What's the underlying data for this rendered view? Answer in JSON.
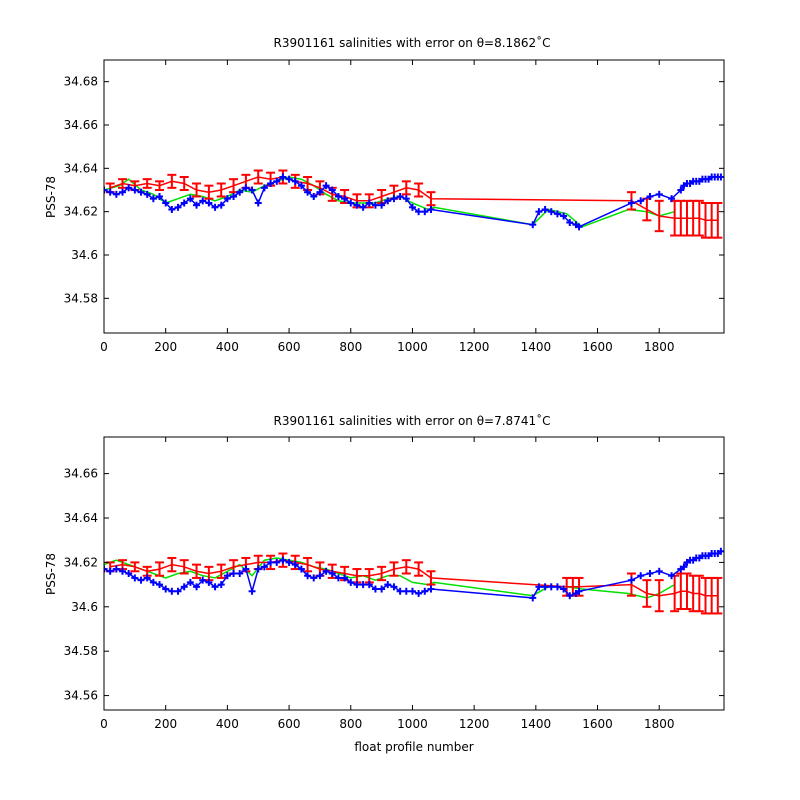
{
  "colors": {
    "fitted": "#00e000",
    "mapped": "#ff0000",
    "observed": "#0000ff",
    "axes": "#000000",
    "background": "#ffffff"
  },
  "chart_data": [
    {
      "type": "scatter",
      "title": "R3901161 salinities with error on θ=8.1862˚C",
      "xlabel": "",
      "ylabel": "PSS-78",
      "xlim": [
        0,
        2010
      ],
      "ylim": [
        34.564,
        34.69
      ],
      "xticks": [
        "0",
        "200",
        "400",
        "600",
        "800",
        "1000",
        "1200",
        "1400",
        "1600",
        "1800"
      ],
      "yticks": [
        "34.58",
        "34.6",
        "34.62",
        "34.64",
        "34.66",
        "34.68"
      ],
      "xtick_values": [
        0,
        200,
        400,
        600,
        800,
        1000,
        1200,
        1400,
        1600,
        1800
      ],
      "ytick_values": [
        34.58,
        34.6,
        34.62,
        34.64,
        34.66,
        34.68
      ],
      "grid": false,
      "series": [
        {
          "role": "mapped-with-error",
          "x": [
            20,
            60,
            100,
            140,
            180,
            220,
            260,
            300,
            340,
            380,
            420,
            460,
            500,
            540,
            580,
            620,
            660,
            700,
            740,
            780,
            820,
            860,
            900,
            940,
            980,
            1020,
            1060,
            1710,
            1760,
            1800,
            1850,
            1870,
            1890,
            1910,
            1930,
            1950,
            1970,
            1990
          ],
          "y": [
            34.631,
            34.633,
            34.632,
            34.633,
            34.632,
            34.634,
            34.633,
            34.63,
            34.629,
            34.63,
            34.632,
            34.634,
            34.636,
            34.635,
            34.636,
            34.634,
            34.633,
            34.631,
            34.628,
            34.627,
            34.625,
            34.625,
            34.627,
            34.629,
            34.631,
            34.63,
            34.626,
            34.625,
            34.621,
            34.618,
            34.617,
            34.617,
            34.617,
            34.617,
            34.617,
            34.616,
            34.616,
            34.616
          ],
          "err": [
            0.002,
            0.002,
            0.002,
            0.002,
            0.002,
            0.003,
            0.003,
            0.003,
            0.003,
            0.003,
            0.003,
            0.003,
            0.003,
            0.003,
            0.003,
            0.003,
            0.003,
            0.003,
            0.003,
            0.003,
            0.003,
            0.003,
            0.003,
            0.003,
            0.003,
            0.003,
            0.003,
            0.004,
            0.005,
            0.007,
            0.008,
            0.008,
            0.008,
            0.008,
            0.008,
            0.008,
            0.008,
            0.008
          ]
        },
        {
          "role": "fitted",
          "x": [
            0,
            50,
            80,
            120,
            160,
            200,
            240,
            280,
            320,
            360,
            400,
            440,
            480,
            520,
            560,
            600,
            640,
            680,
            720,
            760,
            800,
            840,
            880,
            920,
            960,
            1000,
            1050,
            1070,
            1390,
            1440,
            1500,
            1550,
            1700,
            1760,
            1800,
            1850
          ],
          "y": [
            34.63,
            34.632,
            34.635,
            34.63,
            34.628,
            34.624,
            34.626,
            34.628,
            34.627,
            34.625,
            34.627,
            34.63,
            34.629,
            34.632,
            34.634,
            34.636,
            34.635,
            34.632,
            34.628,
            34.625,
            34.624,
            34.624,
            34.624,
            34.626,
            34.627,
            34.624,
            34.621,
            34.622,
            34.614,
            34.621,
            34.619,
            34.613,
            34.621,
            34.62,
            34.618,
            34.62
          ]
        },
        {
          "role": "observed",
          "x": [
            0,
            20,
            40,
            60,
            80,
            100,
            120,
            140,
            160,
            180,
            200,
            220,
            240,
            260,
            280,
            300,
            320,
            340,
            360,
            380,
            400,
            420,
            440,
            460,
            480,
            500,
            520,
            540,
            560,
            580,
            600,
            620,
            640,
            660,
            680,
            700,
            720,
            740,
            760,
            780,
            800,
            820,
            840,
            860,
            880,
            900,
            920,
            940,
            960,
            980,
            1000,
            1020,
            1040,
            1060,
            1390,
            1410,
            1430,
            1450,
            1470,
            1490,
            1510,
            1530,
            1540,
            1710,
            1740,
            1770,
            1800,
            1840,
            1870,
            1880,
            1890,
            1900,
            1910,
            1920,
            1930,
            1940,
            1950,
            1960,
            1970,
            1980,
            1990,
            2000
          ],
          "y": [
            34.63,
            34.629,
            34.628,
            34.629,
            34.631,
            34.63,
            34.629,
            34.628,
            34.626,
            34.627,
            34.624,
            34.621,
            34.622,
            34.624,
            34.626,
            34.623,
            34.625,
            34.624,
            34.622,
            34.623,
            34.626,
            34.627,
            34.629,
            34.631,
            34.63,
            34.624,
            34.631,
            34.633,
            34.634,
            34.636,
            34.635,
            34.634,
            34.632,
            34.629,
            34.627,
            34.629,
            34.632,
            34.63,
            34.627,
            34.626,
            34.624,
            34.623,
            34.622,
            34.624,
            34.623,
            34.623,
            34.625,
            34.626,
            34.627,
            34.626,
            34.622,
            34.62,
            34.62,
            34.621,
            34.614,
            34.62,
            34.621,
            34.62,
            34.619,
            34.618,
            34.615,
            34.614,
            34.613,
            34.624,
            34.625,
            34.627,
            34.628,
            34.626,
            34.63,
            34.632,
            34.633,
            34.633,
            34.634,
            34.634,
            34.634,
            34.635,
            34.635,
            34.635,
            34.636,
            34.636,
            34.636,
            34.636
          ]
        }
      ]
    },
    {
      "type": "scatter",
      "title": "R3901161 salinities with error on θ=7.8741˚C",
      "xlabel": "float profile number",
      "ylabel": "PSS-78",
      "xlim": [
        0,
        2010
      ],
      "ylim": [
        34.5535,
        34.6765
      ],
      "xticks": [
        "0",
        "200",
        "400",
        "600",
        "800",
        "1000",
        "1200",
        "1400",
        "1600",
        "1800"
      ],
      "yticks": [
        "34.56",
        "34.58",
        "34.6",
        "34.62",
        "34.64",
        "34.66"
      ],
      "xtick_values": [
        0,
        200,
        400,
        600,
        800,
        1000,
        1200,
        1400,
        1600,
        1800
      ],
      "ytick_values": [
        34.56,
        34.58,
        34.6,
        34.62,
        34.64,
        34.66
      ],
      "grid": false,
      "series": [
        {
          "role": "mapped-with-error",
          "x": [
            20,
            60,
            100,
            140,
            180,
            220,
            260,
            300,
            340,
            380,
            420,
            460,
            500,
            540,
            580,
            620,
            660,
            700,
            740,
            780,
            820,
            860,
            900,
            940,
            980,
            1020,
            1060,
            1500,
            1520,
            1540,
            1710,
            1760,
            1800,
            1850,
            1870,
            1890,
            1910,
            1930,
            1950,
            1970,
            1990
          ],
          "y": [
            34.618,
            34.619,
            34.618,
            34.616,
            34.617,
            34.619,
            34.618,
            34.616,
            34.615,
            34.616,
            34.618,
            34.619,
            34.62,
            34.62,
            34.621,
            34.62,
            34.619,
            34.617,
            34.616,
            34.615,
            34.614,
            34.614,
            34.615,
            34.617,
            34.618,
            34.617,
            34.613,
            34.609,
            34.609,
            34.609,
            34.61,
            34.606,
            34.605,
            34.606,
            34.607,
            34.607,
            34.606,
            34.606,
            34.605,
            34.605,
            34.605
          ],
          "err": [
            0.002,
            0.002,
            0.002,
            0.002,
            0.003,
            0.003,
            0.003,
            0.003,
            0.003,
            0.003,
            0.003,
            0.003,
            0.003,
            0.003,
            0.003,
            0.003,
            0.003,
            0.003,
            0.003,
            0.003,
            0.003,
            0.003,
            0.003,
            0.003,
            0.003,
            0.003,
            0.003,
            0.004,
            0.004,
            0.004,
            0.005,
            0.006,
            0.007,
            0.008,
            0.008,
            0.008,
            0.008,
            0.008,
            0.008,
            0.008,
            0.008
          ]
        },
        {
          "role": "fitted",
          "x": [
            0,
            40,
            80,
            120,
            160,
            200,
            240,
            280,
            320,
            360,
            400,
            440,
            480,
            520,
            560,
            600,
            640,
            680,
            720,
            760,
            800,
            840,
            880,
            920,
            960,
            1000,
            1050,
            1070,
            1390,
            1440,
            1500,
            1550,
            1700,
            1760,
            1800,
            1850
          ],
          "y": [
            34.619,
            34.621,
            34.619,
            34.617,
            34.615,
            34.613,
            34.615,
            34.616,
            34.614,
            34.613,
            34.616,
            34.619,
            34.614,
            34.621,
            34.622,
            34.621,
            34.62,
            34.618,
            34.617,
            34.615,
            34.613,
            34.614,
            34.612,
            34.614,
            34.614,
            34.611,
            34.61,
            34.611,
            34.605,
            34.609,
            34.609,
            34.608,
            34.606,
            34.604,
            34.606,
            34.61
          ]
        },
        {
          "role": "observed",
          "x": [
            0,
            20,
            40,
            60,
            80,
            100,
            120,
            140,
            160,
            180,
            200,
            220,
            240,
            260,
            280,
            300,
            320,
            340,
            360,
            380,
            400,
            420,
            440,
            460,
            480,
            500,
            520,
            540,
            560,
            580,
            600,
            620,
            640,
            660,
            680,
            700,
            720,
            740,
            760,
            780,
            800,
            820,
            840,
            860,
            880,
            900,
            920,
            940,
            960,
            980,
            1000,
            1020,
            1040,
            1060,
            1390,
            1410,
            1430,
            1450,
            1470,
            1490,
            1510,
            1530,
            1540,
            1710,
            1740,
            1770,
            1800,
            1840,
            1870,
            1880,
            1890,
            1900,
            1910,
            1920,
            1930,
            1940,
            1950,
            1960,
            1970,
            1980,
            1990,
            2000
          ],
          "y": [
            34.617,
            34.616,
            34.617,
            34.616,
            34.615,
            34.613,
            34.612,
            34.613,
            34.611,
            34.61,
            34.608,
            34.607,
            34.607,
            34.609,
            34.611,
            34.609,
            34.612,
            34.611,
            34.609,
            34.61,
            34.614,
            34.615,
            34.615,
            34.617,
            34.607,
            34.617,
            34.618,
            34.62,
            34.62,
            34.621,
            34.62,
            34.619,
            34.617,
            34.614,
            34.613,
            34.614,
            34.616,
            34.615,
            34.613,
            34.613,
            34.611,
            34.61,
            34.61,
            34.61,
            34.608,
            34.608,
            34.61,
            34.609,
            34.607,
            34.607,
            34.607,
            34.606,
            34.607,
            34.608,
            34.604,
            34.609,
            34.609,
            34.609,
            34.609,
            34.608,
            34.605,
            34.606,
            34.607,
            34.612,
            34.614,
            34.615,
            34.616,
            34.614,
            34.617,
            34.618,
            34.62,
            34.621,
            34.621,
            34.622,
            34.622,
            34.623,
            34.623,
            34.623,
            34.624,
            34.624,
            34.624,
            34.625
          ]
        }
      ]
    }
  ]
}
